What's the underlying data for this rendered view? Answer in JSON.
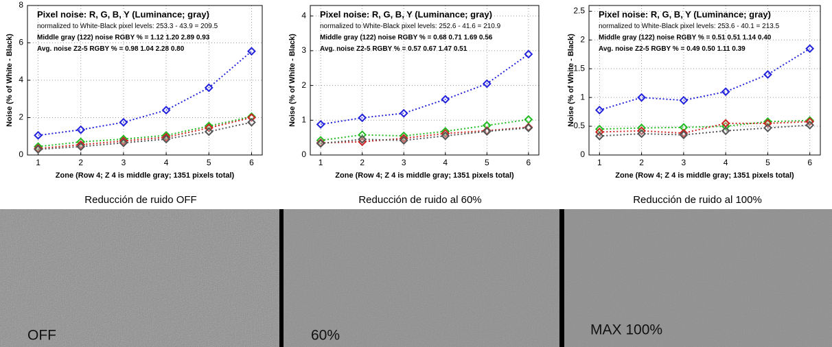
{
  "chart_data": [
    {
      "type": "line",
      "annotations": [
        "Pixel noise: R, G, B, Y (Luminance; gray)",
        "normalized to White-Black pixel levels: 253.3 - 43.9 = 209.5",
        "Middle gray (122) noise RGBY % = 1.12  1.20  2.89  0.93",
        "Avg. noise Z2-5 RGBY % = 0.98  1.04  2.28  0.80"
      ],
      "xlabel": "Zone  (Row 4;  Z 4 is middle gray;  1351 pixels total)",
      "ylabel": "Noise (% of White - Black)",
      "x": [
        1,
        2,
        3,
        4,
        5,
        6
      ],
      "xlim": [
        0.75,
        6.25
      ],
      "xticks": [
        1,
        2,
        3,
        4,
        5,
        6
      ],
      "ylim": [
        0,
        8
      ],
      "yticks": [
        0,
        2,
        4,
        6,
        8
      ],
      "grid": true,
      "series": [
        {
          "color": "#2222dd",
          "values": [
            1.05,
            1.35,
            1.75,
            2.4,
            3.6,
            5.55
          ]
        },
        {
          "color": "#22bb22",
          "values": [
            0.45,
            0.7,
            0.85,
            1.05,
            1.55,
            2.05
          ]
        },
        {
          "color": "#cc2222",
          "values": [
            0.35,
            0.55,
            0.75,
            0.95,
            1.45,
            2.0
          ]
        },
        {
          "color": "#555555",
          "values": [
            0.3,
            0.45,
            0.65,
            0.85,
            1.25,
            1.75
          ]
        }
      ]
    },
    {
      "type": "line",
      "annotations": [
        "Pixel noise: R, G, B, Y (Luminance; gray)",
        "normalized to White-Black pixel levels: 252.6 - 41.6 = 210.9",
        "Middle gray (122) noise RGBY % = 0.68  0.71  1.69  0.56",
        "Avg. noise Z2-5 RGBY % = 0.57  0.67  1.47  0.51"
      ],
      "xlabel": "Zone  (Row 4;  Z 4 is middle gray;  1351 pixels total)",
      "ylabel": "Noise (% of White - Black)",
      "x": [
        1,
        2,
        3,
        4,
        5,
        6
      ],
      "xlim": [
        0.75,
        6.25
      ],
      "xticks": [
        1,
        2,
        3,
        4,
        5,
        6
      ],
      "ylim": [
        0,
        4.3
      ],
      "yticks": [
        0,
        1,
        2,
        3,
        4
      ],
      "grid": true,
      "series": [
        {
          "color": "#2222dd",
          "values": [
            0.88,
            1.07,
            1.2,
            1.6,
            2.05,
            2.9
          ]
        },
        {
          "color": "#22bb22",
          "values": [
            0.42,
            0.58,
            0.55,
            0.68,
            0.85,
            1.02
          ]
        },
        {
          "color": "#cc2222",
          "values": [
            0.35,
            0.38,
            0.48,
            0.62,
            0.7,
            0.8
          ]
        },
        {
          "color": "#555555",
          "values": [
            0.33,
            0.45,
            0.42,
            0.55,
            0.68,
            0.78
          ]
        }
      ]
    },
    {
      "type": "line",
      "annotations": [
        "Pixel noise: R, G, B, Y (Luminance; gray)",
        "normalized to White-Black pixel levels: 253.6 - 40.1 = 213.5",
        "Middle gray (122) noise RGBY % = 0.51  0.51  1.14  0.40",
        "Avg. noise Z2-5 RGBY % = 0.49  0.50  1.11  0.39"
      ],
      "xlabel": "Zone  (Row 4;  Z 4 is middle gray;  1351 pixels total)",
      "ylabel": "Noise (% of White - Black)",
      "x": [
        1,
        2,
        3,
        4,
        5,
        6
      ],
      "xlim": [
        0.75,
        6.25
      ],
      "xticks": [
        1,
        2,
        3,
        4,
        5,
        6
      ],
      "ylim": [
        0,
        2.6
      ],
      "yticks": [
        0,
        0.5,
        1,
        1.5,
        2,
        2.5
      ],
      "grid": true,
      "series": [
        {
          "color": "#2222dd",
          "values": [
            0.78,
            1.0,
            0.95,
            1.1,
            1.4,
            1.85
          ]
        },
        {
          "color": "#22bb22",
          "values": [
            0.45,
            0.47,
            0.48,
            0.5,
            0.58,
            0.6
          ]
        },
        {
          "color": "#cc2222",
          "values": [
            0.4,
            0.42,
            0.38,
            0.55,
            0.55,
            0.58
          ]
        },
        {
          "color": "#555555",
          "values": [
            0.33,
            0.37,
            0.35,
            0.42,
            0.47,
            0.52
          ]
        }
      ]
    }
  ],
  "captions": [
    "Reducción de ruido OFF",
    "Reducción de ruido al 60%",
    "Reducción de ruido al 100%"
  ],
  "patch_labels": [
    "OFF",
    "60%",
    "MAX 100%"
  ]
}
